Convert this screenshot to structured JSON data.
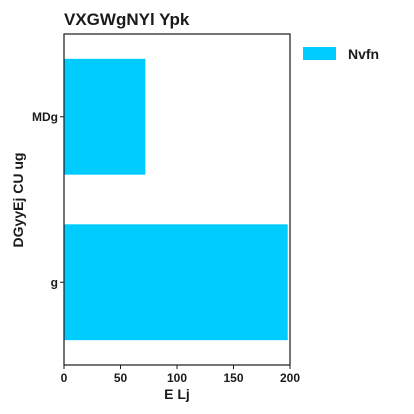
{
  "chart_data": {
    "type": "bar",
    "orientation": "horizontal",
    "title": "VXGWgNYl Ypk",
    "xlabel": "E Lj",
    "ylabel": "DGyyEj CU  ug",
    "categories": [
      "MDg",
      "g"
    ],
    "series": [
      {
        "name": "Nvfn",
        "values": [
          72,
          198
        ],
        "color": "#00ccff"
      }
    ],
    "xlim": [
      0,
      200
    ],
    "xticks": [
      0,
      50,
      100,
      150,
      200
    ],
    "grid": false,
    "legend": "top-right"
  }
}
